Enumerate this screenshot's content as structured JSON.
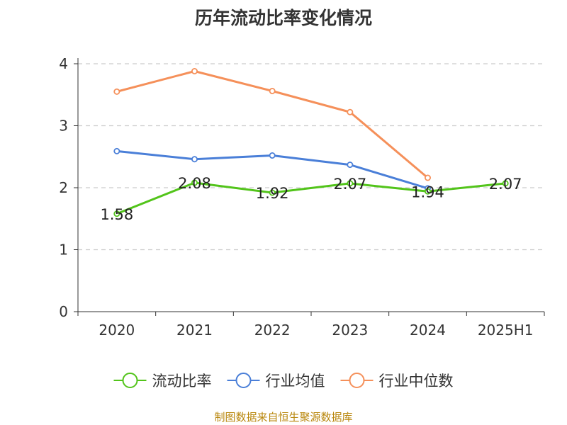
{
  "title": "历年流动比率变化情况",
  "source": "制图数据来自恒生聚源数据库",
  "chart_data": {
    "type": "line",
    "title": "历年流动比率变化情况",
    "categories": [
      "2020",
      "2021",
      "2022",
      "2023",
      "2024",
      "2025H1"
    ],
    "ylim": [
      0,
      4
    ],
    "yticks": [
      "0",
      "1",
      "2",
      "3",
      "4"
    ],
    "grid": true,
    "legend_position": "bottom",
    "series": [
      {
        "name": "流动比率",
        "color": "#52c41a",
        "values": [
          1.58,
          2.08,
          1.92,
          2.07,
          1.94,
          2.07
        ],
        "labels": [
          "1.58",
          "2.08",
          "1.92",
          "2.07",
          "1.94",
          "2.07"
        ]
      },
      {
        "name": "行业均值",
        "color": "#4a7fd8",
        "values": [
          2.59,
          2.46,
          2.52,
          2.37,
          1.99,
          null
        ]
      },
      {
        "name": "行业中位数",
        "color": "#f5905a",
        "values": [
          3.55,
          3.88,
          3.56,
          3.22,
          2.16,
          null
        ]
      }
    ]
  }
}
